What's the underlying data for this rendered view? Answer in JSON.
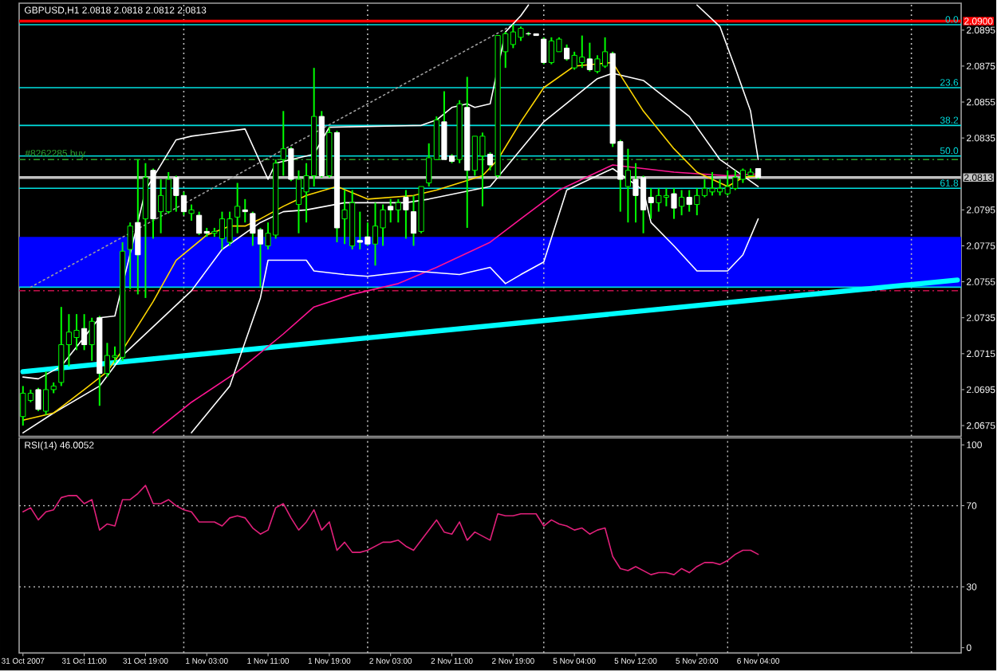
{
  "chart_data": [
    {
      "type": "candlestick",
      "title": "GBPUSD,H1 2.0818 2.0818 2.0812 2.0813",
      "grid": "x",
      "categories": [
        null,
        null,
        null,
        null,
        null,
        null,
        null,
        null,
        null,
        null,
        null,
        null,
        null,
        null,
        null,
        null,
        null,
        null,
        null,
        null,
        null,
        null,
        null,
        null,
        null,
        null,
        null,
        null,
        null,
        null,
        null,
        null,
        null,
        null,
        null,
        null,
        null,
        null,
        null,
        null,
        null,
        null,
        null,
        null,
        null,
        null,
        null,
        null,
        null,
        null,
        null,
        null,
        null,
        null,
        null,
        null,
        null,
        null,
        null,
        null,
        null,
        null,
        null,
        null,
        null,
        null,
        null,
        null,
        null,
        null,
        null,
        null,
        null,
        null,
        null,
        null,
        null,
        null,
        null,
        null,
        null,
        null,
        null,
        null,
        null,
        null,
        null,
        null,
        null,
        null,
        null,
        null,
        null,
        null,
        null,
        null,
        null,
        null,
        null,
        null,
        null,
        null,
        null,
        null,
        null,
        null,
        null,
        null,
        null,
        null,
        null,
        null,
        null,
        null,
        null,
        null,
        null,
        null,
        null,
        null,
        null,
        null,
        null
      ],
      "ohlc": [
        [
          2.068,
          2.0697,
          2.0675,
          2.0693
        ],
        [
          2.0689,
          2.0695,
          2.0688,
          2.0693
        ],
        [
          2.0695,
          2.0696,
          2.0683,
          2.0684
        ],
        [
          2.0683,
          2.0705,
          2.0681,
          2.0695
        ],
        [
          2.0695,
          2.0699,
          2.0693,
          2.0697
        ],
        [
          2.0699,
          2.0741,
          2.0697,
          2.072
        ],
        [
          2.072,
          2.0737,
          2.0708,
          2.0727
        ],
        [
          2.0724,
          2.0737,
          2.0717,
          2.0728
        ],
        [
          2.0729,
          2.0737,
          2.0717,
          2.072
        ],
        [
          2.072,
          2.0735,
          2.0711,
          2.0733
        ],
        [
          2.0735,
          2.0736,
          2.0686,
          2.0704
        ],
        [
          2.0704,
          2.0721,
          2.0702,
          2.0714
        ],
        [
          2.0713,
          2.0719,
          2.071,
          2.0714
        ],
        [
          2.0713,
          2.0777,
          2.0711,
          2.0772
        ],
        [
          2.0773,
          2.0788,
          2.0751,
          2.0786
        ],
        [
          2.0788,
          2.0823,
          2.0748,
          2.077
        ],
        [
          2.079,
          2.0821,
          2.0746,
          2.0813
        ],
        [
          2.0817,
          2.0818,
          2.0779,
          2.079
        ],
        [
          2.0794,
          2.0812,
          2.0782,
          2.0803
        ],
        [
          2.0794,
          2.0816,
          2.0793,
          2.0812
        ],
        [
          2.0813,
          2.0814,
          2.0794,
          2.0803
        ],
        [
          2.0803,
          2.0805,
          2.0792,
          2.0794
        ],
        [
          2.0793,
          2.0798,
          2.0789,
          2.0795
        ],
        [
          2.0792,
          2.0794,
          2.0781,
          2.0782
        ],
        [
          2.0783,
          2.0785,
          2.078,
          2.0782
        ],
        [
          2.0782,
          2.0785,
          2.078,
          2.0783
        ],
        [
          2.0779,
          2.0794,
          2.0773,
          2.079
        ],
        [
          2.0777,
          2.0794,
          2.0775,
          2.079
        ],
        [
          2.0791,
          2.081,
          2.0782,
          2.0797
        ],
        [
          2.0795,
          2.0801,
          2.0788,
          2.0794
        ],
        [
          2.0793,
          2.0794,
          2.0775,
          2.0782
        ],
        [
          2.0784,
          2.0785,
          2.0752,
          2.0776
        ],
        [
          2.0775,
          2.0788,
          2.0773,
          2.0782
        ],
        [
          2.0781,
          2.0823,
          2.0779,
          2.0821
        ],
        [
          2.0823,
          2.085,
          2.0814,
          2.0829
        ],
        [
          2.0829,
          2.083,
          2.0811,
          2.0812
        ],
        [
          2.0798,
          2.0817,
          2.0782,
          2.0812
        ],
        [
          2.0805,
          2.0821,
          2.0788,
          2.0814
        ],
        [
          2.0814,
          2.0874,
          2.0808,
          2.0847
        ],
        [
          2.0847,
          2.085,
          2.0813,
          2.0814
        ],
        [
          2.0814,
          2.0841,
          2.0813,
          2.0838
        ],
        [
          2.0838,
          2.0839,
          2.0777,
          2.0785
        ],
        [
          2.079,
          2.0806,
          2.0776,
          2.0795
        ],
        [
          2.0775,
          2.0806,
          2.0773,
          2.0799
        ],
        [
          2.0778,
          2.0794,
          2.0773,
          2.0777
        ],
        [
          2.078,
          2.0788,
          2.0775,
          2.0776
        ],
        [
          2.0776,
          2.0799,
          2.0764,
          2.0786
        ],
        [
          2.0785,
          2.0798,
          2.0775,
          2.0795
        ],
        [
          2.0797,
          2.0801,
          2.0788,
          2.0795
        ],
        [
          2.0795,
          2.0801,
          2.0788,
          2.0799
        ],
        [
          2.0802,
          2.0806,
          2.0779,
          2.0795
        ],
        [
          2.0794,
          2.0803,
          2.0775,
          2.0782
        ],
        [
          2.0783,
          2.0808,
          2.0782,
          2.0808
        ],
        [
          2.081,
          2.0832,
          2.0808,
          2.0824
        ],
        [
          2.0823,
          2.0847,
          2.0823,
          2.0845
        ],
        [
          2.0844,
          2.0861,
          2.0823,
          2.0823
        ],
        [
          2.0825,
          2.0826,
          2.0821,
          2.0822
        ],
        [
          2.0823,
          2.0856,
          2.0821,
          2.0854
        ],
        [
          2.0852,
          2.0869,
          2.0785,
          2.0817
        ],
        [
          2.0817,
          2.0836,
          2.0814,
          2.0836
        ],
        [
          2.0825,
          2.0838,
          2.0797,
          2.0836
        ],
        [
          2.0826,
          2.0827,
          2.0817,
          2.082
        ],
        [
          2.0814,
          2.0892,
          2.0813,
          2.0892
        ],
        [
          2.0883,
          2.0894,
          2.0874,
          2.0893
        ],
        [
          2.0887,
          2.0898,
          2.0885,
          2.0894
        ],
        [
          2.0891,
          2.0897,
          2.0889,
          2.0896
        ],
        [
          2.0893,
          2.0894,
          2.0892,
          2.0893
        ],
        [
          2.0893,
          2.0893,
          2.0892,
          2.0892
        ],
        [
          2.089,
          2.0891,
          2.0876,
          2.0877
        ],
        [
          2.0877,
          2.0891,
          2.0876,
          2.0889
        ],
        [
          2.0883,
          2.0891,
          2.0883,
          2.089
        ],
        [
          2.0885,
          2.0887,
          2.0878,
          2.0879
        ],
        [
          2.0874,
          2.0883,
          2.0873,
          2.0881
        ],
        [
          2.0877,
          2.0892,
          2.0874,
          2.088
        ],
        [
          2.0879,
          2.0888,
          2.0872,
          2.0873
        ],
        [
          2.0872,
          2.0881,
          2.0871,
          2.0879
        ],
        [
          2.0875,
          2.0891,
          2.0874,
          2.0883
        ],
        [
          2.0882,
          2.0883,
          2.083,
          2.0832
        ],
        [
          2.0833,
          2.0834,
          2.0794,
          2.0812
        ],
        [
          2.0808,
          2.0829,
          2.0788,
          2.0817
        ],
        [
          2.0812,
          2.0821,
          2.0788,
          2.0803
        ],
        [
          2.0813,
          2.0814,
          2.0782,
          2.0795
        ],
        [
          2.0802,
          2.0807,
          2.079,
          2.0799
        ],
        [
          2.0799,
          2.0807,
          2.0794,
          2.0803
        ],
        [
          2.0802,
          2.0807,
          2.0797,
          2.0803
        ],
        [
          2.0804,
          2.0807,
          2.079,
          2.0796
        ],
        [
          2.0797,
          2.0806,
          2.0792,
          2.0802
        ],
        [
          2.0802,
          2.0806,
          2.0794,
          2.0798
        ],
        [
          2.0798,
          2.0807,
          2.0792,
          2.0803
        ],
        [
          2.0803,
          2.0812,
          2.0802,
          2.0807
        ],
        [
          2.0805,
          2.0816,
          2.0803,
          2.0807
        ],
        [
          2.0805,
          2.0812,
          2.0803,
          2.0807
        ],
        [
          2.0804,
          2.0817,
          2.0803,
          2.0808
        ],
        [
          2.0807,
          2.0817,
          2.0806,
          2.0813
        ],
        [
          2.0812,
          2.0818,
          2.081,
          2.0817
        ],
        [
          2.0814,
          2.0818,
          2.0814,
          2.0816
        ],
        [
          2.0818,
          2.0818,
          2.0812,
          2.0813
        ],
        null,
        null,
        null,
        null,
        null,
        null,
        null,
        null,
        null,
        null,
        null,
        null,
        null,
        null,
        null,
        null,
        null,
        null,
        null,
        null,
        null,
        null,
        null,
        null,
        null,
        null
      ],
      "ylim": [
        2.0669,
        2.091
      ],
      "yticks": [
        2.0675,
        2.0695,
        2.0715,
        2.0735,
        2.0755,
        2.0775,
        2.0795,
        2.0835,
        2.0855,
        2.0875,
        2.0895
      ],
      "bands": [
        {
          "axis": "y",
          "from": 2.0752,
          "to": 2.078,
          "color": "#0000ff"
        }
      ],
      "ref_lines": [
        {
          "axis": "y",
          "value": 2.0898,
          "color": "#00e0e0",
          "line_style": "solid"
        },
        {
          "axis": "y",
          "value": 2.0863,
          "color": "#00e0e0",
          "line_style": "solid"
        },
        {
          "axis": "y",
          "value": 2.0842,
          "color": "#00e0e0",
          "line_style": "solid"
        },
        {
          "axis": "y",
          "value": 2.0825,
          "color": "#00e0e0",
          "line_style": "solid"
        },
        {
          "axis": "y",
          "value": 2.0807,
          "color": "#00e0e0",
          "line_style": "solid"
        },
        {
          "axis": "y",
          "value": 2.0752,
          "color": "#00e0e0",
          "line_style": "solid"
        },
        {
          "axis": "y",
          "value": 2.0823,
          "label": "#8262285 buy",
          "color": "#2ea02e",
          "line_style": "dashed"
        },
        {
          "axis": "y",
          "value": 2.075,
          "color": "#c0104a",
          "line_style": "dashed"
        },
        {
          "axis": "y",
          "value": 2.09,
          "label": "2.0900",
          "color": "#ff0000"
        },
        {
          "axis": "y",
          "value": 2.0813,
          "label": "2.0813",
          "color": "#c0c0c0"
        }
      ],
      "annotations": [
        {
          "text": "0.0",
          "y": 2.0898
        },
        {
          "text": "23.6",
          "y": 2.0863
        },
        {
          "text": "38.2",
          "y": 2.0842
        },
        {
          "text": "50.0",
          "y": 2.0825
        },
        {
          "text": "61.8",
          "y": 2.0807
        }
      ],
      "series": [
        {
          "type": "line",
          "color": "#00ffff",
          "values": [
            2.0705,
            null,
            null,
            null,
            null,
            null,
            null,
            null,
            null,
            null,
            null,
            null,
            null,
            null,
            null,
            null,
            null,
            null,
            null,
            null,
            null,
            null,
            null,
            null,
            null,
            null,
            null,
            null,
            null,
            null,
            null,
            null,
            null,
            null,
            null,
            null,
            null,
            null,
            null,
            null,
            null,
            null,
            null,
            null,
            null,
            null,
            null,
            null,
            null,
            null,
            null,
            null,
            null,
            null,
            null,
            null,
            null,
            null,
            null,
            null,
            null,
            null,
            null,
            null,
            null,
            null,
            null,
            null,
            null,
            null,
            null,
            null,
            null,
            null,
            null,
            null,
            null,
            null,
            null,
            null,
            null,
            null,
            null,
            null,
            null,
            null,
            null,
            null,
            null,
            null,
            null,
            null,
            null,
            null,
            null,
            null,
            null,
            null,
            null,
            null,
            null,
            null,
            null,
            null,
            null,
            null,
            null,
            null,
            null,
            null,
            null,
            null,
            null,
            null,
            null,
            null,
            null,
            null,
            null,
            null,
            null,
            null,
            2.0756
          ]
        },
        {
          "type": "line",
          "color": "#a0a0a0",
          "line_style": "dotted",
          "values": [
            null,
            2.0752,
            null,
            null,
            null,
            null,
            null,
            null,
            null,
            null,
            null,
            null,
            null,
            null,
            null,
            null,
            null,
            null,
            null,
            null,
            null,
            null,
            null,
            null,
            null,
            null,
            null,
            null,
            null,
            null,
            null,
            null,
            null,
            null,
            null,
            null,
            null,
            null,
            null,
            null,
            null,
            null,
            null,
            null,
            null,
            null,
            null,
            null,
            null,
            null,
            null,
            null,
            null,
            null,
            null,
            null,
            null,
            null,
            null,
            null,
            null,
            null,
            null,
            null,
            2.0898,
            null,
            null,
            null,
            null,
            null,
            null,
            null,
            null,
            null,
            null,
            null,
            null,
            null,
            null,
            null,
            null,
            null,
            null,
            null,
            null,
            null,
            null,
            null,
            null,
            null,
            null,
            null,
            null,
            null,
            null,
            null,
            null,
            null,
            null,
            null,
            null,
            null,
            null,
            null,
            null,
            null,
            null,
            null,
            null,
            null,
            null,
            null,
            null,
            null,
            null,
            null,
            null,
            null,
            null,
            null,
            null,
            null,
            null
          ]
        },
        {
          "type": "line",
          "color": "#ff1493",
          "values": [
            null,
            null,
            null,
            null,
            null,
            null,
            null,
            null,
            null,
            null,
            null,
            null,
            null,
            null,
            null,
            null,
            null,
            2.0671,
            null,
            null,
            null,
            null,
            2.0688,
            null,
            null,
            null,
            null,
            null,
            2.0705,
            null,
            null,
            null,
            null,
            null,
            2.0726,
            null,
            null,
            null,
            2.0741,
            null,
            null,
            null,
            null,
            2.0748,
            null,
            null,
            null,
            null,
            null,
            2.0754,
            null,
            null,
            null,
            null,
            2.0763,
            null,
            null,
            null,
            null,
            null,
            null,
            2.0777,
            null,
            null,
            null,
            2.079,
            null,
            null,
            null,
            null,
            2.0806,
            null,
            null,
            null,
            null,
            null,
            null,
            2.082,
            null,
            null,
            null,
            null,
            null,
            null,
            null,
            2.0816,
            null,
            null,
            null,
            null,
            null,
            null,
            2.0814,
            null,
            null,
            null,
            2.0815,
            null,
            null,
            null,
            null,
            null,
            null,
            null,
            null,
            null,
            null,
            null,
            null,
            null,
            null,
            null,
            null,
            null,
            null,
            null,
            null,
            null,
            null,
            null,
            null,
            null,
            null
          ]
        },
        {
          "type": "line",
          "color": "#ffffff",
          "values": [
            2.0671,
            null,
            null,
            null,
            2.0682,
            null,
            null,
            null,
            null,
            null,
            2.0697,
            null,
            null,
            2.0714,
            null,
            null,
            null,
            null,
            null,
            null,
            null,
            null,
            2.075,
            null,
            null,
            null,
            2.0773,
            null,
            null,
            null,
            null,
            2.0788,
            null,
            null,
            2.0794,
            null,
            null,
            2.0795,
            null,
            null,
            null,
            null,
            2.0799,
            null,
            null,
            null,
            null,
            null,
            null,
            null,
            2.0799,
            null,
            null,
            2.0801,
            null,
            null,
            null,
            null,
            null,
            null,
            null,
            2.0808,
            null,
            null,
            null,
            null,
            null,
            null,
            2.0844,
            null,
            null,
            null,
            null,
            null,
            null,
            2.0868,
            null,
            2.0871,
            null,
            null,
            null,
            2.0867,
            null,
            null,
            null,
            null,
            null,
            2.0847,
            null,
            null,
            null,
            2.0823,
            null,
            null,
            null,
            null,
            2.0808,
            null,
            null,
            null,
            null,
            null,
            null,
            null,
            null,
            null,
            null,
            null,
            null,
            null,
            null,
            null,
            null,
            null,
            null,
            null,
            null,
            null,
            null,
            null,
            null,
            null,
            null
          ]
        },
        {
          "type": "line",
          "color": "#ffd700",
          "values": [
            2.0678,
            null,
            null,
            null,
            2.0682,
            null,
            null,
            null,
            2.0695,
            null,
            null,
            2.0705,
            null,
            2.0717,
            null,
            null,
            null,
            2.0744,
            null,
            null,
            2.0767,
            null,
            null,
            null,
            2.0781,
            null,
            null,
            2.0786,
            null,
            2.0786,
            null,
            2.079,
            null,
            null,
            2.0797,
            null,
            null,
            2.0803,
            null,
            null,
            null,
            2.0808,
            null,
            null,
            null,
            2.0801,
            null,
            null,
            null,
            null,
            null,
            2.0803,
            null,
            null,
            2.0806,
            null,
            null,
            2.081,
            null,
            null,
            2.0814,
            null,
            2.0823,
            null,
            null,
            2.0844,
            null,
            null,
            2.0863,
            null,
            null,
            null,
            2.0875,
            null,
            null,
            null,
            null,
            2.0877,
            2.087,
            null,
            null,
            2.085,
            null,
            null,
            null,
            2.0829,
            null,
            null,
            2.0816,
            null,
            null,
            null,
            2.0808,
            null,
            2.0813,
            null,
            2.0814,
            null,
            null,
            null,
            null,
            null,
            null,
            null,
            null,
            null,
            null,
            null,
            null,
            null,
            null,
            null,
            null,
            null,
            null,
            null,
            null,
            null,
            null,
            null,
            null,
            null,
            null
          ]
        },
        {
          "type": "line",
          "color": "#ffffff",
          "values": [
            2.0702,
            null,
            2.0701,
            null,
            null,
            2.0708,
            null,
            null,
            null,
            null,
            2.0735,
            null,
            2.0736,
            null,
            null,
            2.0788,
            2.0806,
            null,
            null,
            null,
            2.0834,
            null,
            2.0836,
            null,
            null,
            null,
            null,
            null,
            null,
            2.084,
            null,
            null,
            2.0812,
            2.0821,
            null,
            2.0823,
            null,
            null,
            2.0826,
            null,
            2.0841,
            null,
            null,
            null,
            null,
            null,
            null,
            null,
            null,
            null,
            null,
            null,
            2.0842,
            null,
            2.0845,
            null,
            2.0852,
            null,
            2.0854,
            2.0852,
            null,
            2.0854,
            null,
            2.0894,
            null,
            2.0903,
            2.0909,
            null,
            null,
            null,
            null,
            null,
            null,
            null,
            null,
            null,
            null,
            null,
            null,
            null,
            null,
            null,
            null,
            null,
            null,
            null,
            null,
            null,
            null,
            null,
            null,
            null,
            null,
            null,
            null,
            null,
            null,
            null,
            null,
            null,
            null,
            null,
            null,
            null,
            null,
            null,
            null,
            null,
            null,
            null,
            null,
            null,
            null,
            null,
            null,
            null,
            null,
            null,
            null,
            null,
            null,
            null,
            null
          ]
        },
        {
          "type": "line",
          "color": "#ffffff",
          "values": [
            null,
            null,
            null,
            null,
            null,
            null,
            null,
            null,
            null,
            null,
            null,
            null,
            null,
            null,
            null,
            null,
            null,
            null,
            null,
            null,
            null,
            null,
            null,
            null,
            null,
            null,
            null,
            null,
            null,
            null,
            null,
            null,
            null,
            null,
            null,
            null,
            null,
            null,
            null,
            null,
            null,
            null,
            null,
            null,
            null,
            null,
            null,
            null,
            null,
            null,
            null,
            null,
            null,
            null,
            null,
            null,
            null,
            null,
            null,
            null,
            null,
            null,
            null,
            null,
            null,
            null,
            null,
            null,
            null,
            null,
            null,
            null,
            null,
            null,
            null,
            null,
            null,
            null,
            null,
            null,
            null,
            null,
            null,
            null,
            null,
            null,
            null,
            null,
            2.0909,
            null,
            null,
            2.0897,
            null,
            2.0874,
            null,
            2.085,
            2.0823,
            null,
            null,
            null,
            null,
            null,
            null,
            null,
            null,
            null,
            null,
            null,
            null,
            null,
            null,
            null,
            null,
            null,
            null,
            null,
            null,
            null,
            null,
            null,
            null,
            null,
            null
          ]
        },
        {
          "type": "line",
          "color": "#ffffff",
          "values": [
            null,
            null,
            null,
            null,
            null,
            null,
            null,
            null,
            null,
            null,
            null,
            null,
            null,
            null,
            null,
            null,
            null,
            null,
            null,
            null,
            null,
            null,
            2.0671,
            null,
            null,
            null,
            null,
            2.0697,
            null,
            null,
            null,
            2.0746,
            2.0767,
            null,
            null,
            null,
            null,
            2.0767,
            2.0761,
            null,
            null,
            null,
            2.0759,
            null,
            null,
            2.0758,
            null,
            null,
            null,
            null,
            null,
            2.0761,
            null,
            null,
            null,
            null,
            null,
            2.0759,
            null,
            null,
            null,
            2.0763,
            null,
            2.0754,
            null,
            2.0759,
            null,
            null,
            2.0766,
            null,
            null,
            2.0806,
            null,
            null,
            null,
            null,
            null,
            2.0818,
            null,
            null,
            null,
            2.0806,
            2.0788,
            null,
            null,
            2.0775,
            null,
            null,
            2.0761,
            null,
            null,
            null,
            2.0761,
            null,
            2.077,
            null,
            2.079,
            null,
            null,
            null,
            null,
            null,
            null,
            null,
            null,
            null,
            null,
            null,
            null,
            null,
            null,
            null,
            null,
            null,
            null,
            null,
            null,
            null,
            null,
            null,
            null,
            null,
            null
          ]
        }
      ]
    },
    {
      "type": "line",
      "title": "RSI(14) 46.0052",
      "color": "#e0207a",
      "grid": "x",
      "categories": [
        "31 Oct 2007",
        null,
        null,
        null,
        null,
        null,
        null,
        null,
        "31 Oct 11:00",
        null,
        null,
        null,
        null,
        null,
        null,
        null,
        "31 Oct 19:00",
        null,
        null,
        null,
        null,
        null,
        null,
        null,
        "1 Nov 03:00",
        null,
        null,
        null,
        null,
        null,
        null,
        null,
        "1 Nov 11:00",
        null,
        null,
        null,
        null,
        null,
        null,
        null,
        "1 Nov 19:00",
        null,
        null,
        null,
        null,
        null,
        null,
        null,
        "2 Nov 03:00",
        null,
        null,
        null,
        null,
        null,
        null,
        null,
        "2 Nov 11:00",
        null,
        null,
        null,
        null,
        null,
        null,
        null,
        "2 Nov 19:00",
        null,
        null,
        null,
        null,
        null,
        null,
        null,
        "5 Nov 04:00",
        null,
        null,
        null,
        null,
        null,
        null,
        null,
        "5 Nov 12:00",
        null,
        null,
        null,
        null,
        null,
        null,
        null,
        "5 Nov 20:00",
        null,
        null,
        null,
        null,
        null,
        null,
        null,
        "6 Nov 04:00",
        null,
        null,
        null,
        null,
        null,
        null,
        null,
        null,
        null,
        null,
        null,
        null,
        null,
        null,
        null,
        null,
        null,
        null,
        null,
        null,
        null,
        null,
        null,
        null,
        null,
        null
      ],
      "values": [
        67,
        69,
        63,
        67,
        68,
        74,
        75,
        75,
        71,
        73,
        58,
        61,
        60,
        73,
        73,
        76,
        80,
        71,
        71,
        73,
        70,
        68,
        67,
        62,
        62,
        62,
        60,
        64,
        65,
        64,
        59,
        56,
        58,
        69,
        71,
        64,
        58,
        62,
        68,
        58,
        62,
        48,
        52,
        47,
        47,
        48,
        50,
        52,
        52,
        53,
        50,
        48,
        53,
        58,
        63,
        57,
        56,
        62,
        53,
        57,
        55,
        53,
        66,
        65,
        65,
        66,
        66,
        66,
        60,
        63,
        61,
        60,
        58,
        59,
        56,
        58,
        59,
        45,
        39,
        38,
        40,
        38,
        36,
        37,
        37,
        36,
        39,
        37,
        40,
        42,
        42,
        41,
        43,
        46,
        48,
        48,
        46,
        null,
        null,
        null,
        null,
        null,
        null,
        null,
        null,
        null,
        null,
        null,
        null,
        null,
        null,
        null,
        null,
        null,
        null,
        null,
        null,
        null,
        null,
        null,
        null,
        null,
        null
      ],
      "ylim": [
        -2.6,
        103.4
      ],
      "yticks": [
        0,
        30,
        70,
        100
      ],
      "ref_lines": [
        {
          "axis": "y",
          "value": 70,
          "color": "#c0c0c0",
          "line_style": "dotted"
        },
        {
          "axis": "y",
          "value": 30,
          "color": "#c0c0c0",
          "line_style": "dotted"
        }
      ]
    }
  ]
}
